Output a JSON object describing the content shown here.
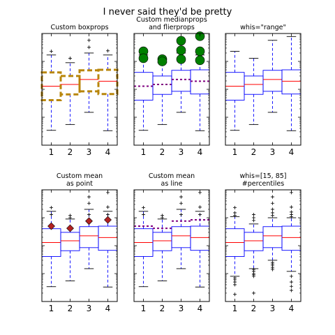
{
  "suptitle": "I never said they'd be pretty",
  "colors": {
    "box": "#0000ff",
    "median": "#ff0000",
    "whisker": "#0000ff",
    "flier": "#000000",
    "custom_box": "#b8860b",
    "custom_median": "#800080",
    "flier_big": "#008000",
    "mean_point": "#b22222"
  },
  "chart_data": [
    {
      "type": "box",
      "title": "Custom boxprops",
      "yscale": "log",
      "ylim": [
        1,
        10000
      ],
      "categories": [
        "1",
        "2",
        "3",
        "4"
      ],
      "style": "custom_box",
      "boxes": [
        {
          "whislo": 3.4,
          "q1": 41,
          "med": 130,
          "q3": 405,
          "whishi": 1700,
          "fliers": [
            2300
          ]
        },
        {
          "whislo": 5.5,
          "q1": 66,
          "med": 150,
          "q3": 300,
          "whishi": 900,
          "fliers": [
            1300
          ]
        },
        {
          "whislo": 15,
          "q1": 85,
          "med": 225,
          "q3": 480,
          "whishi": 2000,
          "fliers": [
            3200,
            5700
          ]
        },
        {
          "whislo": 3.3,
          "q1": 68,
          "med": 195,
          "q3": 500,
          "whishi": 1700,
          "fliers": [
            2400
          ]
        }
      ]
    },
    {
      "type": "box",
      "title": "Custom medianprops\nand flierprops",
      "yscale": "log",
      "ylim": [
        1,
        10000
      ],
      "categories": [
        "1",
        "2",
        "3",
        "4"
      ],
      "style": "custom_median",
      "boxes": [
        {
          "whislo": 3.4,
          "q1": 41,
          "med": 130,
          "q3": 405,
          "whishi": 1700,
          "fliers": [
            2300,
            1300
          ]
        },
        {
          "whislo": 5.5,
          "q1": 66,
          "med": 150,
          "q3": 300,
          "whishi": 900,
          "fliers": [
            1200,
            1000
          ]
        },
        {
          "whislo": 15,
          "q1": 85,
          "med": 225,
          "q3": 480,
          "whishi": 2000,
          "fliers": [
            5500,
            2500,
            1200
          ]
        },
        {
          "whislo": 3.3,
          "q1": 68,
          "med": 195,
          "q3": 500,
          "whishi": 1700,
          "fliers": [
            8000,
            2300,
            1100
          ]
        }
      ]
    },
    {
      "type": "box",
      "title": "whis=\"range\"",
      "yscale": "log",
      "ylim": [
        1,
        10000
      ],
      "categories": [
        "1",
        "2",
        "3",
        "4"
      ],
      "style": "default",
      "boxes": [
        {
          "whislo": 3.4,
          "q1": 41,
          "med": 130,
          "q3": 405,
          "whishi": 2300,
          "fliers": []
        },
        {
          "whislo": 5.5,
          "q1": 66,
          "med": 150,
          "q3": 300,
          "whishi": 1300,
          "fliers": []
        },
        {
          "whislo": 15,
          "q1": 85,
          "med": 225,
          "q3": 480,
          "whishi": 5700,
          "fliers": []
        },
        {
          "whislo": 3.3,
          "q1": 68,
          "med": 195,
          "q3": 500,
          "whishi": 7800,
          "fliers": []
        }
      ]
    },
    {
      "type": "box",
      "title": "Custom mean\nas point",
      "yscale": "log",
      "ylim": [
        1,
        10000
      ],
      "categories": [
        "1",
        "2",
        "3",
        "4"
      ],
      "style": "mean_point",
      "boxes": [
        {
          "whislo": 3.4,
          "q1": 41,
          "med": 130,
          "q3": 405,
          "whishi": 1700,
          "mean": 500,
          "fliers": [
            2300,
            1300
          ]
        },
        {
          "whislo": 5.5,
          "q1": 66,
          "med": 150,
          "q3": 300,
          "whishi": 900,
          "mean": 420,
          "fliers": [
            1200,
            1000
          ]
        },
        {
          "whislo": 15,
          "q1": 85,
          "med": 225,
          "q3": 480,
          "whishi": 2000,
          "mean": 760,
          "fliers": [
            5600,
            3300,
            1300
          ]
        },
        {
          "whislo": 3.3,
          "q1": 68,
          "med": 195,
          "q3": 500,
          "whishi": 1700,
          "mean": 840,
          "fliers": [
            8000,
            2400,
            1300
          ]
        }
      ]
    },
    {
      "type": "box",
      "title": "Custom mean\nas line",
      "yscale": "log",
      "ylim": [
        1,
        10000
      ],
      "categories": [
        "1",
        "2",
        "3",
        "4"
      ],
      "style": "mean_line",
      "boxes": [
        {
          "whislo": 3.4,
          "q1": 41,
          "med": 130,
          "q3": 405,
          "whishi": 1700,
          "mean": 500,
          "fliers": [
            2300,
            1300
          ]
        },
        {
          "whislo": 5.5,
          "q1": 66,
          "med": 150,
          "q3": 300,
          "whishi": 900,
          "mean": 420,
          "fliers": [
            1200,
            1000
          ]
        },
        {
          "whislo": 15,
          "q1": 85,
          "med": 225,
          "q3": 480,
          "whishi": 2000,
          "mean": 760,
          "fliers": [
            5600,
            3300,
            1300
          ]
        },
        {
          "whislo": 3.3,
          "q1": 68,
          "med": 195,
          "q3": 500,
          "whishi": 1700,
          "mean": 840,
          "fliers": [
            8000,
            2400,
            1300
          ]
        }
      ]
    },
    {
      "type": "box",
      "title": "whis=[15, 85]\n#percentiles",
      "yscale": "log",
      "ylim": [
        1,
        10000
      ],
      "categories": [
        "1",
        "2",
        "3",
        "4"
      ],
      "style": "default",
      "boxes": [
        {
          "whislo": 8,
          "q1": 41,
          "med": 130,
          "q3": 405,
          "whishi": 1100,
          "fliers": [
            2300,
            1500,
            1200,
            7,
            6,
            5,
            4,
            1.8
          ]
        },
        {
          "whislo": 15,
          "q1": 66,
          "med": 150,
          "q3": 300,
          "whishi": 600,
          "fliers": [
            1300,
            1000,
            800,
            14,
            12,
            10,
            9,
            8,
            2
          ]
        },
        {
          "whislo": 30,
          "q1": 85,
          "med": 225,
          "q3": 480,
          "whishi": 1000,
          "fliers": [
            5600,
            3300,
            2000,
            1500,
            1200,
            25,
            22,
            19,
            16,
            14
          ]
        },
        {
          "whislo": 12,
          "q1": 68,
          "med": 195,
          "q3": 500,
          "whishi": 1000,
          "fliers": [
            8000,
            2400,
            1600,
            1300,
            1100,
            8,
            5,
            3.5,
            2.5
          ]
        }
      ]
    }
  ]
}
